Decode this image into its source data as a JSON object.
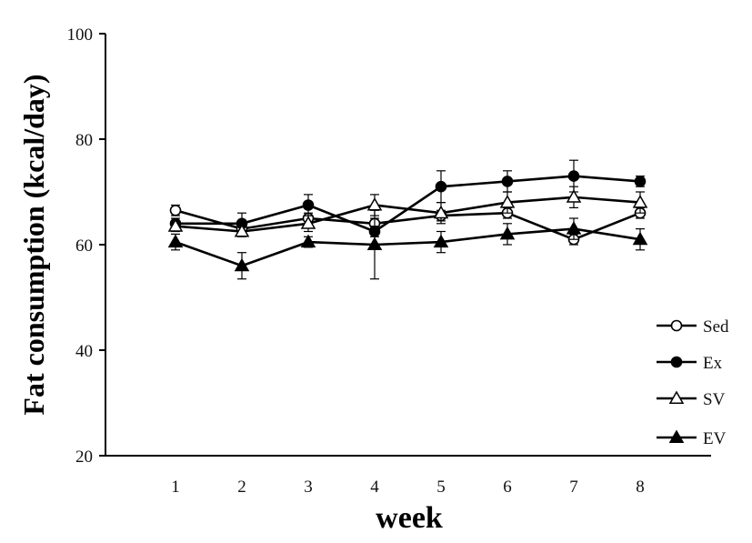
{
  "chart_data": {
    "type": "line",
    "xlabel": "week",
    "ylabel": "Fat consumption (kcal/day)",
    "x": [
      1,
      2,
      3,
      4,
      5,
      6,
      7,
      8
    ],
    "ylim": [
      20,
      100
    ],
    "yticks": [
      20,
      40,
      60,
      80,
      100
    ],
    "grid": false,
    "legend_position": "bottom-right",
    "series": [
      {
        "name": "Sed",
        "marker": "circle-open",
        "values": [
          66.5,
          63.0,
          65.0,
          64.0,
          65.5,
          66.0,
          61.0,
          66.0
        ],
        "errors": [
          1.0,
          1.0,
          1.0,
          1.0,
          1.0,
          1.0,
          1.0,
          1.0
        ]
      },
      {
        "name": "Ex",
        "marker": "circle-filled",
        "values": [
          64.0,
          64.0,
          67.5,
          62.5,
          71.0,
          72.0,
          73.0,
          72.0
        ],
        "errors": [
          1.0,
          2.0,
          2.0,
          1.0,
          3.0,
          2.0,
          3.0,
          1.0
        ]
      },
      {
        "name": "SV",
        "marker": "triangle-open",
        "values": [
          63.5,
          62.5,
          64.0,
          67.5,
          66.0,
          68.0,
          69.0,
          68.0
        ],
        "errors": [
          1.0,
          1.0,
          1.5,
          2.0,
          2.0,
          2.0,
          2.0,
          2.0
        ]
      },
      {
        "name": "EV",
        "marker": "triangle-filled",
        "values": [
          60.5,
          56.0,
          60.5,
          60.0,
          60.5,
          62.0,
          63.0,
          61.0
        ],
        "errors": [
          1.5,
          2.5,
          1.0,
          6.5,
          2.0,
          2.0,
          2.0,
          2.0
        ]
      }
    ]
  }
}
